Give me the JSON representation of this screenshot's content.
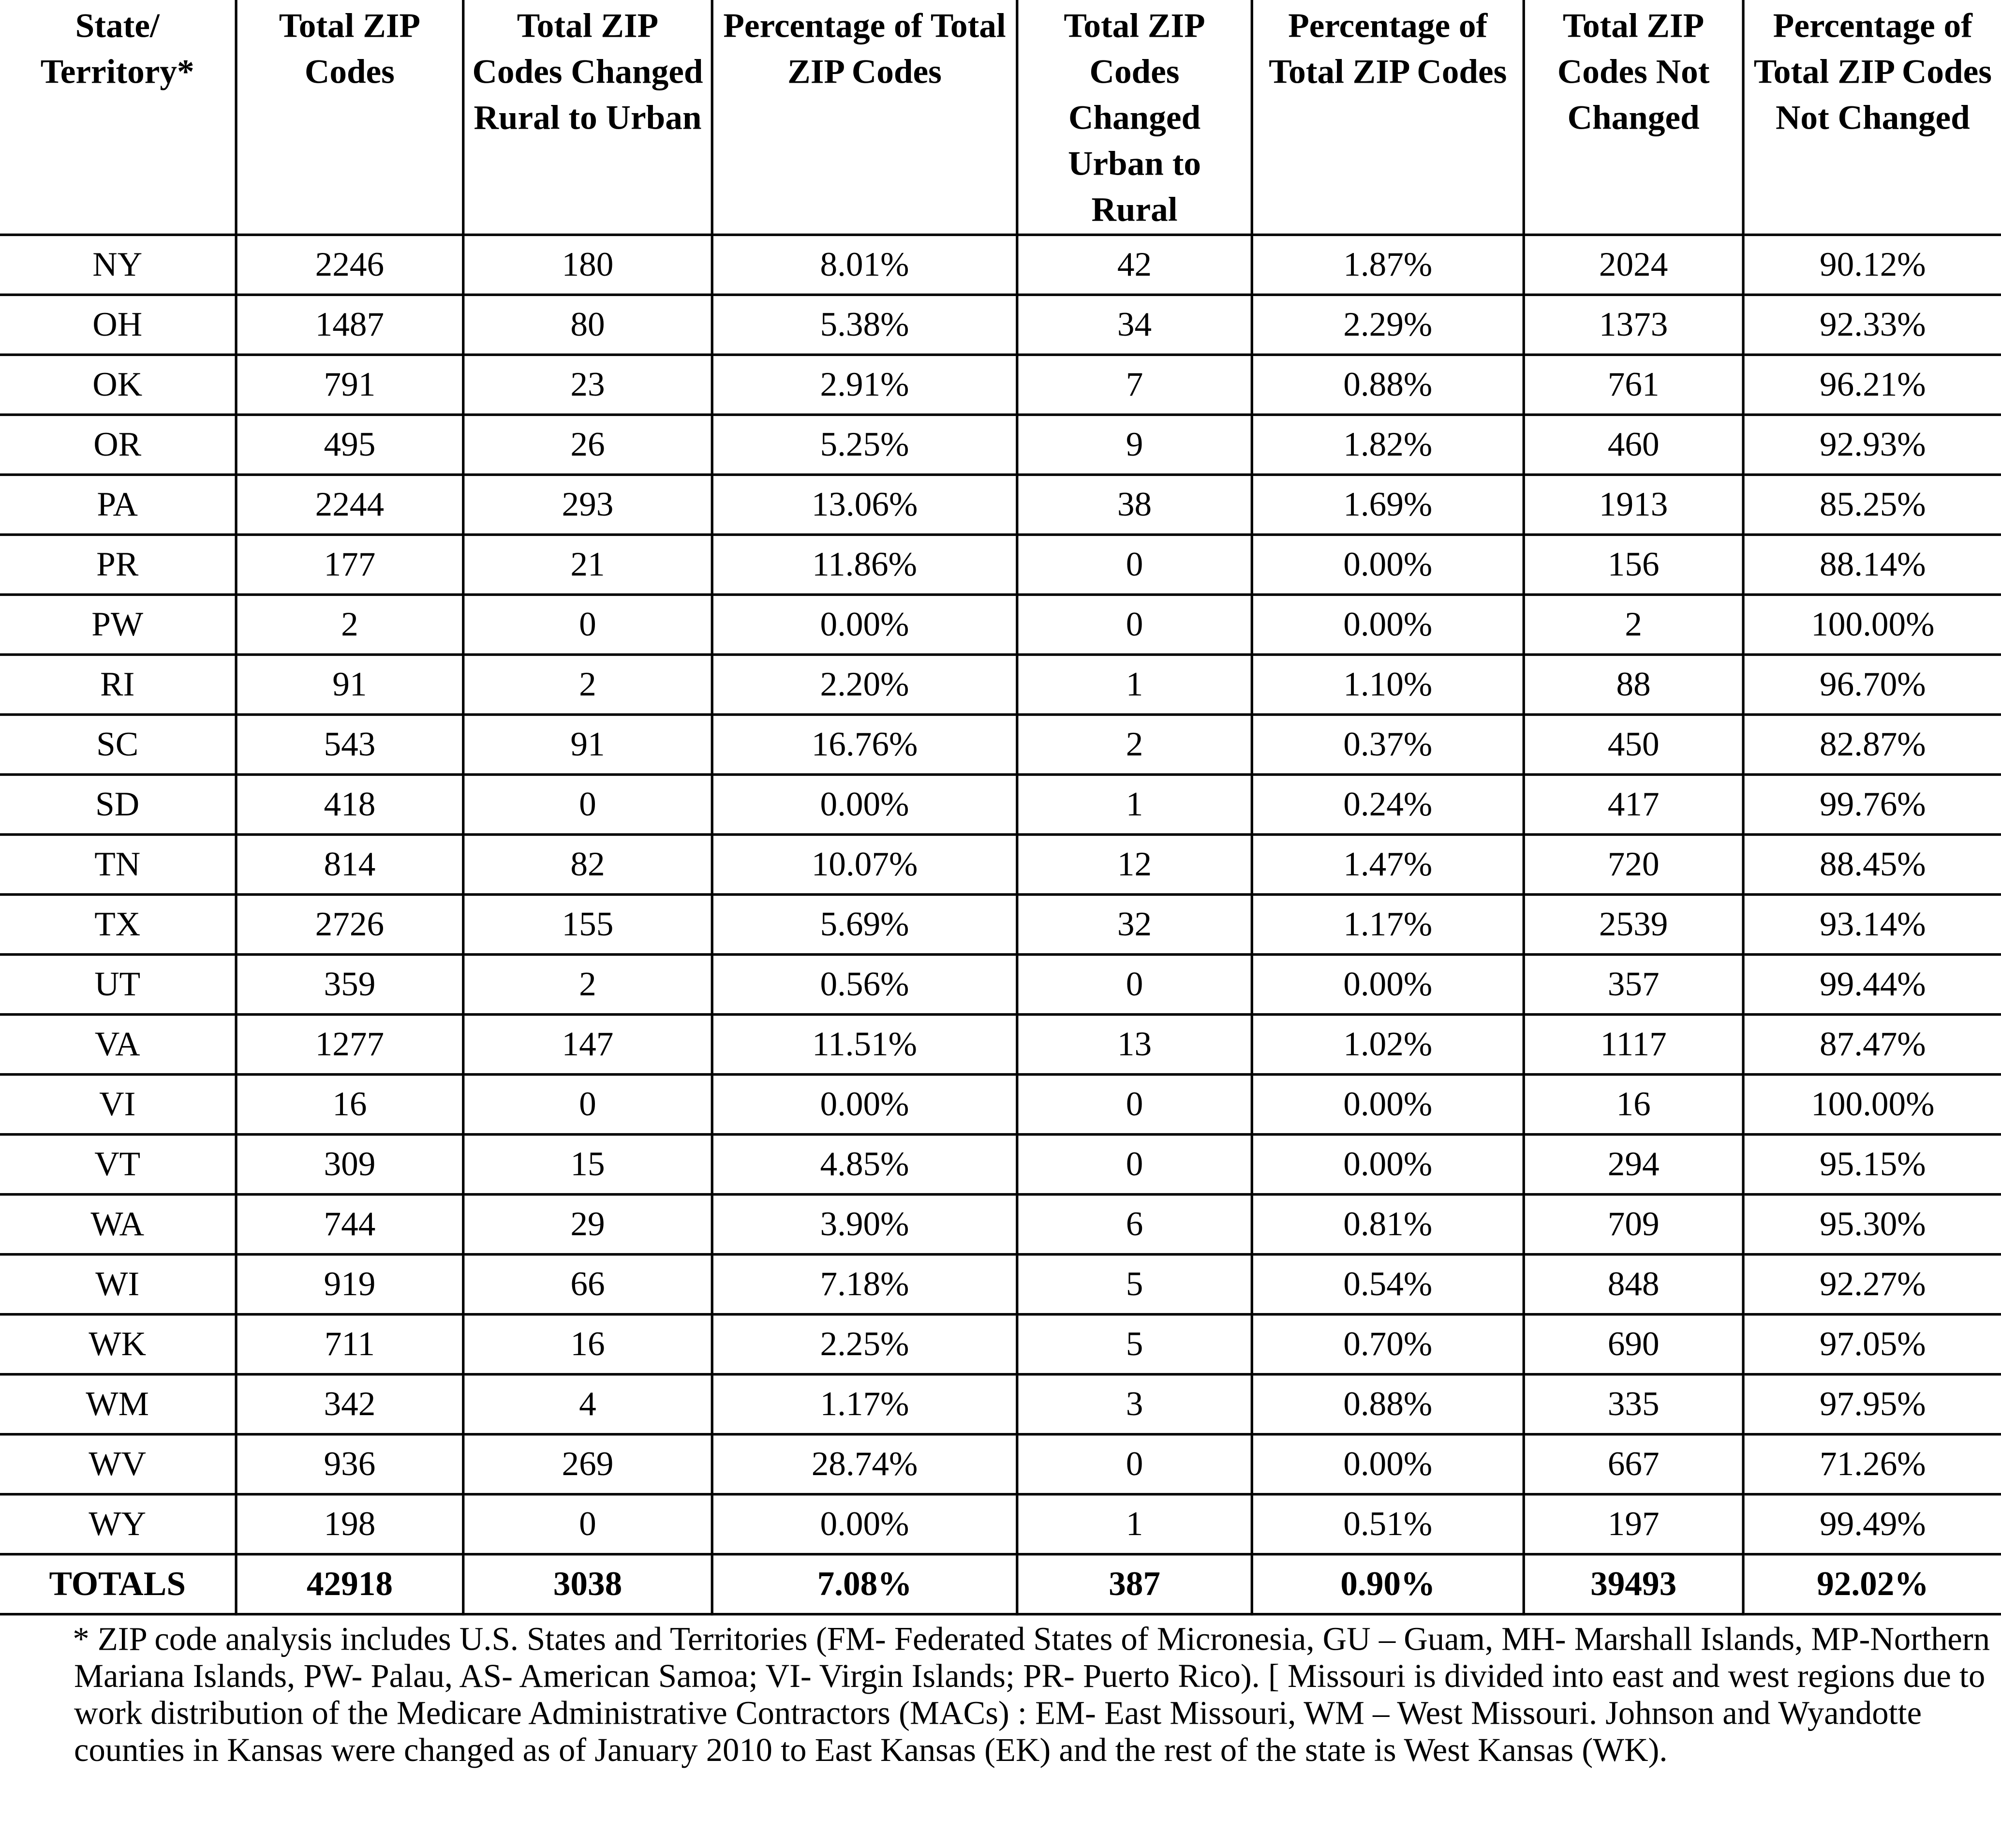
{
  "table": {
    "header": [
      "State/ Territory*",
      "Total ZIP Codes",
      "Total ZIP Codes Changed Rural to Urban",
      "Percentage of Total ZIP Codes",
      "Total ZIP Codes Changed Urban to Rural",
      "Percentage of Total ZIP Codes",
      "Total ZIP Codes Not Changed",
      "Percentage of Total ZIP Codes Not Changed"
    ],
    "rows": [
      [
        "NY",
        "2246",
        "180",
        "8.01%",
        "42",
        "1.87%",
        "2024",
        "90.12%"
      ],
      [
        "OH",
        "1487",
        "80",
        "5.38%",
        "34",
        "2.29%",
        "1373",
        "92.33%"
      ],
      [
        "OK",
        "791",
        "23",
        "2.91%",
        "7",
        "0.88%",
        "761",
        "96.21%"
      ],
      [
        "OR",
        "495",
        "26",
        "5.25%",
        "9",
        "1.82%",
        "460",
        "92.93%"
      ],
      [
        "PA",
        "2244",
        "293",
        "13.06%",
        "38",
        "1.69%",
        "1913",
        "85.25%"
      ],
      [
        "PR",
        "177",
        "21",
        "11.86%",
        "0",
        "0.00%",
        "156",
        "88.14%"
      ],
      [
        "PW",
        "2",
        "0",
        "0.00%",
        "0",
        "0.00%",
        "2",
        "100.00%"
      ],
      [
        "RI",
        "91",
        "2",
        "2.20%",
        "1",
        "1.10%",
        "88",
        "96.70%"
      ],
      [
        "SC",
        "543",
        "91",
        "16.76%",
        "2",
        "0.37%",
        "450",
        "82.87%"
      ],
      [
        "SD",
        "418",
        "0",
        "0.00%",
        "1",
        "0.24%",
        "417",
        "99.76%"
      ],
      [
        "TN",
        "814",
        "82",
        "10.07%",
        "12",
        "1.47%",
        "720",
        "88.45%"
      ],
      [
        "TX",
        "2726",
        "155",
        "5.69%",
        "32",
        "1.17%",
        "2539",
        "93.14%"
      ],
      [
        "UT",
        "359",
        "2",
        "0.56%",
        "0",
        "0.00%",
        "357",
        "99.44%"
      ],
      [
        "VA",
        "1277",
        "147",
        "11.51%",
        "13",
        "1.02%",
        "1117",
        "87.47%"
      ],
      [
        "VI",
        "16",
        "0",
        "0.00%",
        "0",
        "0.00%",
        "16",
        "100.00%"
      ],
      [
        "VT",
        "309",
        "15",
        "4.85%",
        "0",
        "0.00%",
        "294",
        "95.15%"
      ],
      [
        "WA",
        "744",
        "29",
        "3.90%",
        "6",
        "0.81%",
        "709",
        "95.30%"
      ],
      [
        "WI",
        "919",
        "66",
        "7.18%",
        "5",
        "0.54%",
        "848",
        "92.27%"
      ],
      [
        "WK",
        "711",
        "16",
        "2.25%",
        "5",
        "0.70%",
        "690",
        "97.05%"
      ],
      [
        "WM",
        "342",
        "4",
        "1.17%",
        "3",
        "0.88%",
        "335",
        "97.95%"
      ],
      [
        "WV",
        "936",
        "269",
        "28.74%",
        "0",
        "0.00%",
        "667",
        "71.26%"
      ],
      [
        "WY",
        "198",
        "0",
        "0.00%",
        "1",
        "0.51%",
        "197",
        "99.49%"
      ]
    ],
    "totals": [
      "TOTALS",
      "42918",
      "3038",
      "7.08%",
      "387",
      "0.90%",
      "39493",
      "92.02%"
    ]
  },
  "footnote": "*  ZIP code analysis includes U.S. States and Territories (FM- Federated States of Micronesia, GU – Guam, MH- Marshall Islands, MP-Northern Mariana Islands, PW- Palau, AS- American Samoa; VI- Virgin Islands; PR- Puerto Rico).  [ Missouri is  divided into east and west regions due to work distribution of the Medicare Administrative Contractors (MACs) :   EM- East Missouri, WM – West Missouri.  Johnson and Wyandotte counties in Kansas were changed as of January 2010 to East Kansas (EK) and the rest of the state is West Kansas (WK)."
}
